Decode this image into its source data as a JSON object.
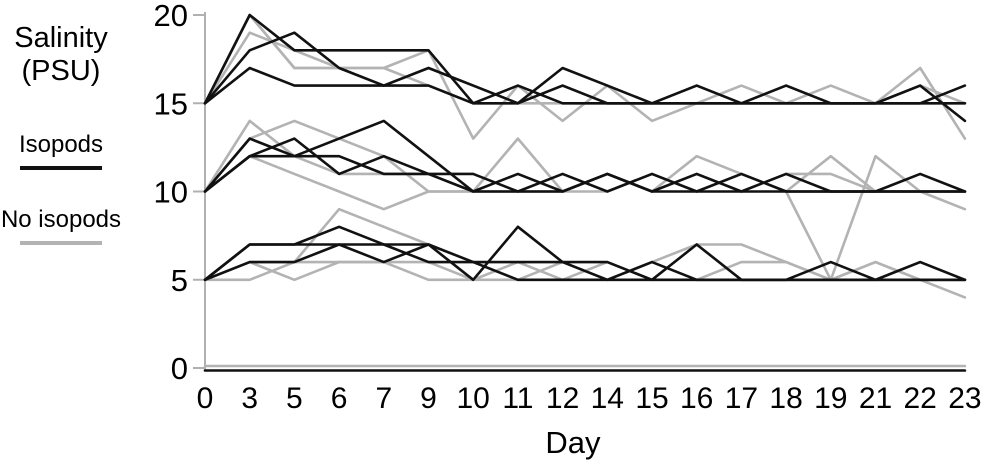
{
  "chart_data": {
    "type": "line",
    "title": "",
    "ylabel": "Salinity (PSU)",
    "xlabel": "Day",
    "x_tick_labels": [
      "0",
      "3",
      "5",
      "6",
      "7",
      "9",
      "10",
      "11",
      "12",
      "14",
      "15",
      "16",
      "17",
      "18",
      "19",
      "21",
      "22",
      "23"
    ],
    "y_tick_labels": [
      "0",
      "5",
      "10",
      "15",
      "20"
    ],
    "y_ticks": [
      0,
      5,
      10,
      15,
      20
    ],
    "ylim": [
      0,
      20
    ],
    "grid": "off",
    "legend_position": "left",
    "axis_color": "#b0b0b0",
    "legend": [
      {
        "label": "Isopods",
        "color": "#111111"
      },
      {
        "label": "No isopods",
        "color": "#b3b3b3"
      }
    ],
    "days": [
      0,
      3,
      5,
      6,
      7,
      9,
      10,
      11,
      12,
      14,
      15,
      16,
      17,
      18,
      19,
      21,
      22,
      23
    ],
    "series": [
      {
        "name": "no-isopods-15-r1",
        "group": "No isopods",
        "values": [
          15,
          20,
          17,
          17,
          17,
          18,
          13,
          16,
          14,
          16,
          14,
          15,
          15,
          15,
          16,
          15,
          17,
          13
        ]
      },
      {
        "name": "no-isopods-15-r2",
        "group": "No isopods",
        "values": [
          15,
          19,
          18,
          17,
          17,
          16,
          15,
          15,
          15,
          15,
          15,
          16,
          15,
          16,
          15,
          15,
          15,
          15
        ]
      },
      {
        "name": "no-isopods-15-r3",
        "group": "No isopods",
        "values": [
          15,
          20,
          17,
          17,
          16,
          17,
          16,
          15,
          16,
          15,
          15,
          15,
          16,
          15,
          15,
          15,
          16,
          15
        ]
      },
      {
        "name": "no-isopods-10-r1",
        "group": "No isopods",
        "values": [
          10,
          14,
          12,
          11,
          11,
          11,
          10,
          13,
          10,
          11,
          10,
          12,
          11,
          10,
          5,
          12,
          10,
          9
        ]
      },
      {
        "name": "no-isopods-10-r2",
        "group": "No isopods",
        "values": [
          10,
          13,
          14,
          13,
          12,
          10,
          10,
          10,
          10,
          10,
          11,
          10,
          11,
          10,
          12,
          10,
          10,
          10
        ]
      },
      {
        "name": "no-isopods-10-r3",
        "group": "No isopods",
        "values": [
          10,
          12,
          11,
          10,
          9,
          10,
          10,
          10,
          10,
          11,
          10,
          11,
          10,
          11,
          11,
          10,
          10,
          10
        ]
      },
      {
        "name": "no-isopods-5-r1",
        "group": "No isopods",
        "values": [
          5,
          6,
          6,
          9,
          8,
          7,
          6,
          5,
          5,
          5,
          6,
          7,
          7,
          6,
          5,
          6,
          5,
          5
        ]
      },
      {
        "name": "no-isopods-5-r2",
        "group": "No isopods",
        "values": [
          5,
          6,
          5,
          6,
          6,
          6,
          5,
          6,
          5,
          6,
          5,
          5,
          6,
          6,
          5,
          5,
          6,
          5
        ]
      },
      {
        "name": "no-isopods-5-r3",
        "group": "No isopods",
        "values": [
          5,
          5,
          6,
          6,
          6,
          5,
          5,
          5,
          6,
          5,
          5,
          5,
          5,
          5,
          5,
          6,
          5,
          4
        ]
      },
      {
        "name": "no-isopods-0",
        "group": "No isopods",
        "values": [
          0,
          0,
          0,
          0,
          0,
          0,
          0,
          0,
          0,
          0,
          0,
          0,
          0,
          0,
          0,
          0,
          0,
          0
        ]
      },
      {
        "name": "isopods-15-r1",
        "group": "Isopods",
        "values": [
          15,
          20,
          18,
          18,
          18,
          18,
          15,
          16,
          15,
          15,
          15,
          16,
          15,
          15,
          15,
          15,
          16,
          14
        ]
      },
      {
        "name": "isopods-15-r2",
        "group": "Isopods",
        "values": [
          15,
          18,
          19,
          17,
          16,
          17,
          16,
          15,
          17,
          16,
          15,
          15,
          15,
          15,
          15,
          15,
          15,
          16
        ]
      },
      {
        "name": "isopods-15-r3",
        "group": "Isopods",
        "values": [
          15,
          17,
          16,
          16,
          16,
          16,
          15,
          15,
          16,
          15,
          15,
          15,
          15,
          16,
          15,
          15,
          15,
          15
        ]
      },
      {
        "name": "isopods-10-r1",
        "group": "Isopods",
        "values": [
          10,
          13,
          12,
          13,
          14,
          12,
          10,
          11,
          10,
          11,
          10,
          11,
          10,
          10,
          10,
          10,
          11,
          10
        ]
      },
      {
        "name": "isopods-10-r2",
        "group": "Isopods",
        "values": [
          10,
          12,
          13,
          11,
          12,
          11,
          11,
          10,
          11,
          10,
          11,
          10,
          11,
          10,
          10,
          10,
          10,
          10
        ]
      },
      {
        "name": "isopods-10-r3",
        "group": "Isopods",
        "values": [
          10,
          12,
          12,
          12,
          11,
          11,
          10,
          10,
          10,
          11,
          10,
          10,
          10,
          11,
          10,
          10,
          10,
          10
        ]
      },
      {
        "name": "isopods-5-r1",
        "group": "Isopods",
        "values": [
          5,
          7,
          7,
          7,
          7,
          7,
          5,
          8,
          6,
          5,
          6,
          5,
          5,
          5,
          5,
          5,
          5,
          5
        ]
      },
      {
        "name": "isopods-5-r2",
        "group": "Isopods",
        "values": [
          5,
          7,
          7,
          8,
          7,
          6,
          6,
          6,
          6,
          6,
          5,
          7,
          5,
          5,
          5,
          5,
          6,
          5
        ]
      },
      {
        "name": "isopods-5-r3",
        "group": "Isopods",
        "values": [
          5,
          6,
          6,
          7,
          6,
          7,
          6,
          5,
          5,
          5,
          5,
          5,
          5,
          5,
          6,
          5,
          5,
          5
        ]
      },
      {
        "name": "isopods-0",
        "group": "Isopods",
        "values": [
          0,
          0,
          0,
          0,
          0,
          0,
          0,
          0,
          0,
          0,
          0,
          0,
          0,
          0,
          0,
          0,
          0,
          0
        ]
      }
    ]
  }
}
